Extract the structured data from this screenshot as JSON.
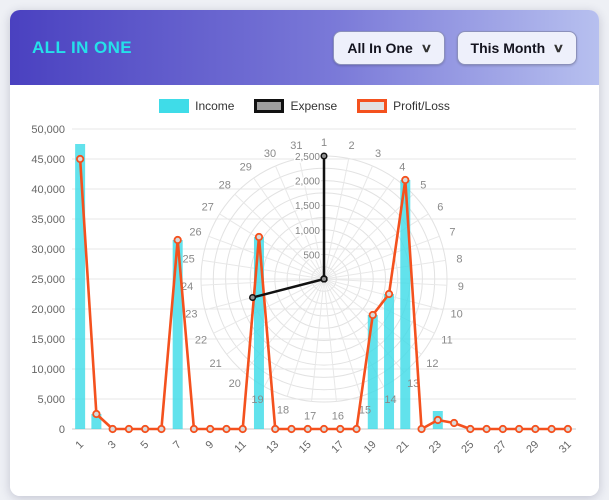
{
  "header": {
    "title": "ALL IN ONE",
    "dropdowns": [
      {
        "label": "All In One"
      },
      {
        "label": "This Month"
      }
    ]
  },
  "icons": {
    "chevron_down": "∨"
  },
  "colors": {
    "income": "#3fdce8",
    "expense": "#111111",
    "profit_loss": "#f4511e",
    "header_gradient_start": "#4a41c0",
    "header_gradient_end": "#b7c0ef",
    "title": "#25e0ea"
  },
  "chart_data": {
    "type": "mixed",
    "title": "",
    "categories": [
      1,
      2,
      3,
      4,
      5,
      6,
      7,
      8,
      9,
      10,
      11,
      12,
      13,
      14,
      15,
      16,
      17,
      18,
      19,
      20,
      21,
      22,
      23,
      24,
      25,
      26,
      27,
      28,
      29,
      30,
      31
    ],
    "x_tick_labels": [
      "1",
      "3",
      "5",
      "7",
      "9",
      "11",
      "13",
      "15",
      "17",
      "19",
      "21",
      "23",
      "25",
      "27",
      "29",
      "31"
    ],
    "y_axis": {
      "min": 0,
      "max": 50000,
      "step": 5000
    },
    "polar_axis": {
      "min": 0,
      "max": 2500,
      "step": 500,
      "tick_labels": [
        "500",
        "1,000",
        "1,500",
        "2,000",
        "2,500"
      ]
    },
    "legend": [
      {
        "label": "Income",
        "swatch": "income"
      },
      {
        "label": "Expense",
        "swatch": "expense"
      },
      {
        "label": "Profit/Loss",
        "swatch": "profit"
      }
    ],
    "series": [
      {
        "name": "Income",
        "type": "bar",
        "color": "#3fdce8",
        "values": [
          47500,
          2500,
          0,
          0,
          0,
          0,
          31500,
          0,
          0,
          0,
          0,
          32000,
          0,
          0,
          0,
          0,
          0,
          0,
          19000,
          22500,
          41500,
          0,
          3000,
          0,
          0,
          0,
          0,
          0,
          0,
          0,
          0
        ]
      },
      {
        "name": "Profit/Loss",
        "type": "line",
        "color": "#f4511e",
        "values": [
          45000,
          2500,
          0,
          0,
          0,
          0,
          31500,
          0,
          0,
          0,
          0,
          32000,
          0,
          0,
          0,
          0,
          0,
          0,
          19000,
          22500,
          41500,
          0,
          1500,
          1000,
          0,
          0,
          0,
          0,
          0,
          0,
          0
        ]
      },
      {
        "name": "Expense",
        "type": "polar_line",
        "color": "#111111",
        "values": [
          2500,
          0,
          0,
          0,
          0,
          0,
          0,
          0,
          0,
          0,
          0,
          0,
          0,
          0,
          0,
          0,
          0,
          0,
          0,
          0,
          0,
          0,
          1500,
          0,
          0,
          0,
          0,
          0,
          0,
          0,
          0
        ]
      }
    ]
  }
}
